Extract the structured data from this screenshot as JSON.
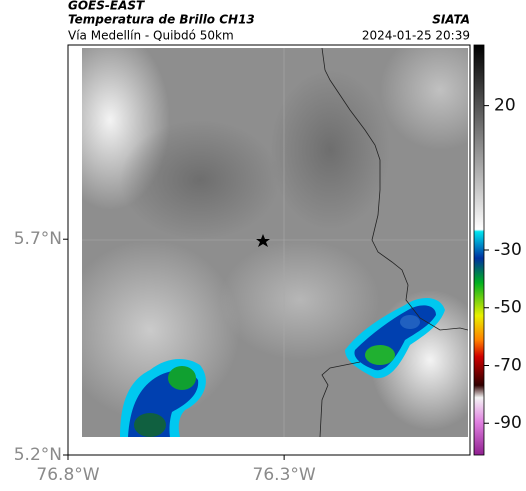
{
  "header": {
    "title": "GOES-EAST",
    "subtitle": "Temperatura de Brillo CH13",
    "region": "Vía Medellín - Quibdó 50km",
    "source": "SIATA",
    "timestamp": "2024-01-25 20:39"
  },
  "map": {
    "latlim": [
      5.2,
      6.15
    ],
    "lonlim": [
      -76.8,
      -75.87
    ],
    "latticks": [
      {
        "value": 5.7,
        "label": "5.7°N"
      },
      {
        "value": 5.2,
        "label": "5.2°N"
      }
    ],
    "lonticks": [
      {
        "value": -76.8,
        "label": "76.8°W"
      },
      {
        "value": -76.3,
        "label": "76.3°W"
      }
    ]
  },
  "colorbar": {
    "lim": [
      -101,
      41
    ],
    "ticks": [
      20,
      -30,
      -50,
      -70,
      -90
    ]
  }
}
